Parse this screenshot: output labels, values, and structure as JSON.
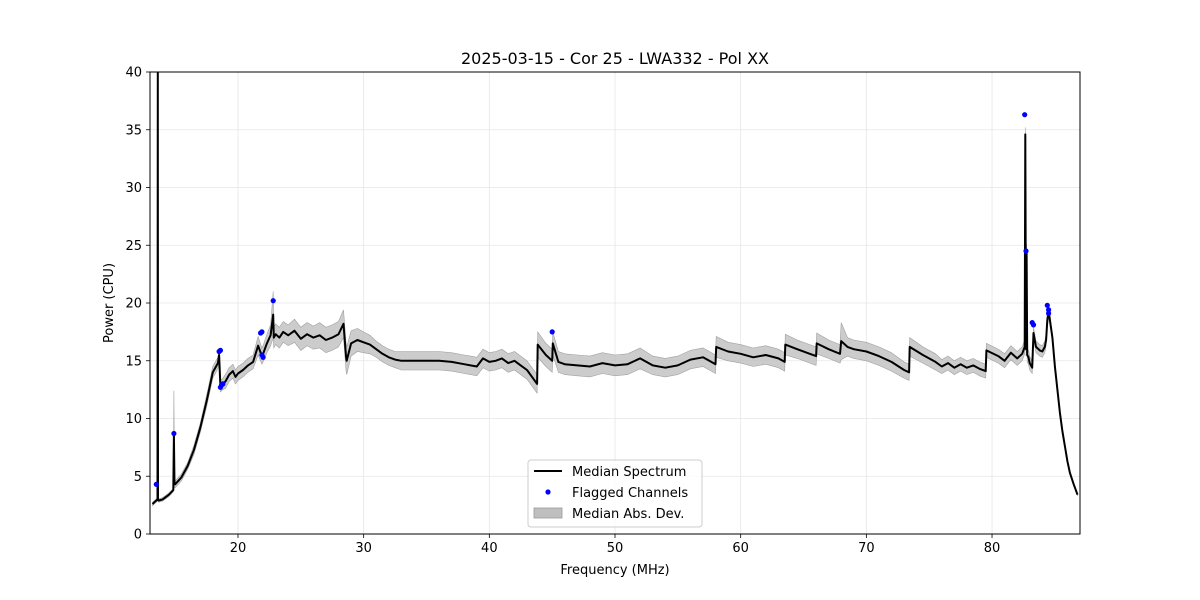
{
  "chart_data": {
    "type": "line",
    "title": "2025-03-15 - Cor 25 - LWA332 - Pol XX",
    "xlabel": "Frequency (MHz)",
    "ylabel": "Power (CPU)",
    "xlim": [
      13.0,
      87.0
    ],
    "ylim": [
      0,
      40
    ],
    "xticks": [
      20,
      30,
      40,
      50,
      60,
      70,
      80
    ],
    "yticks": [
      0,
      5,
      10,
      15,
      20,
      25,
      30,
      35,
      40
    ],
    "grid": true,
    "legend": {
      "location": "lower-center",
      "entries": [
        {
          "label": "Median Spectrum",
          "kind": "line",
          "color": "#000000"
        },
        {
          "label": "Flagged Channels",
          "kind": "marker",
          "color": "#0000ff"
        },
        {
          "label": "Median Abs. Dev.",
          "kind": "patch",
          "color": "#bfbfbf"
        }
      ]
    },
    "series": [
      {
        "name": "Median Spectrum",
        "color": "#000000",
        "x": [
          13.2,
          13.5,
          13.6,
          13.62,
          13.64,
          13.7,
          14.0,
          14.5,
          14.85,
          14.9,
          14.95,
          15.0,
          15.5,
          16.0,
          16.5,
          17.0,
          17.5,
          18.0,
          18.4,
          18.5,
          18.6,
          18.8,
          19.0,
          19.3,
          19.6,
          19.8,
          20.0,
          20.4,
          20.8,
          21.2,
          21.6,
          21.9,
          22.0,
          22.3,
          22.6,
          22.8,
          22.85,
          23.0,
          23.3,
          23.6,
          24.0,
          24.5,
          25.0,
          25.5,
          26.0,
          26.5,
          27.0,
          27.5,
          28.0,
          28.4,
          28.6,
          28.65,
          29.0,
          29.5,
          30.0,
          30.5,
          31.0,
          31.5,
          32.0,
          32.5,
          33.0,
          34.0,
          35.0,
          36.0,
          37.0,
          38.0,
          38.5,
          39.0,
          39.5,
          40.0,
          40.5,
          41.0,
          41.5,
          42.0,
          42.5,
          43.0,
          43.8,
          43.85,
          44.5,
          45.0,
          45.05,
          45.5,
          46.0,
          47.0,
          48.0,
          49.0,
          50.0,
          51.0,
          52.0,
          53.0,
          54.0,
          55.0,
          56.0,
          57.0,
          57.5,
          58.0,
          58.05,
          59.0,
          60.0,
          61.0,
          62.0,
          63.0,
          63.5,
          63.55,
          64.5,
          65.5,
          66.0,
          66.05,
          67.0,
          67.9,
          68.0,
          68.5,
          69.0,
          70.0,
          71.0,
          72.0,
          73.0,
          73.4,
          73.45,
          74.5,
          75.5,
          76.0,
          76.5,
          77.0,
          77.5,
          78.0,
          78.5,
          79.0,
          79.5,
          79.55,
          80.5,
          81.0,
          81.5,
          82.0,
          82.4,
          82.6,
          82.65,
          82.7,
          82.75,
          82.8,
          82.9,
          83.0,
          83.2,
          83.3,
          83.5,
          83.8,
          84.0,
          84.2,
          84.3,
          84.4,
          84.5,
          84.6,
          84.8,
          85.0,
          85.2,
          85.4,
          85.6,
          85.8,
          86.0,
          86.2,
          86.5,
          86.8
        ],
        "y": [
          2.6,
          2.9,
          3.0,
          42.0,
          3.0,
          2.9,
          3.0,
          3.4,
          3.8,
          8.6,
          4.3,
          4.3,
          4.9,
          5.9,
          7.3,
          9.2,
          11.5,
          14.0,
          14.8,
          15.5,
          12.8,
          13.0,
          13.2,
          13.8,
          14.1,
          13.6,
          13.9,
          14.2,
          14.6,
          14.9,
          16.3,
          15.4,
          15.6,
          16.5,
          17.2,
          19.0,
          17.0,
          17.3,
          17.0,
          17.5,
          17.2,
          17.6,
          16.9,
          17.3,
          17.0,
          17.2,
          16.8,
          17.0,
          17.3,
          18.2,
          15.3,
          15.0,
          16.5,
          16.8,
          16.6,
          16.4,
          16.0,
          15.6,
          15.3,
          15.1,
          15.0,
          15.0,
          15.0,
          15.0,
          14.9,
          14.7,
          14.6,
          14.5,
          15.2,
          14.9,
          15.0,
          15.2,
          14.8,
          15.0,
          14.6,
          14.2,
          13.0,
          16.4,
          15.5,
          15.0,
          16.5,
          14.9,
          14.7,
          14.6,
          14.5,
          14.8,
          14.6,
          14.7,
          15.2,
          14.6,
          14.4,
          14.6,
          15.1,
          15.3,
          15.0,
          14.7,
          16.2,
          15.8,
          15.6,
          15.3,
          15.5,
          15.2,
          14.9,
          16.4,
          16.0,
          15.6,
          15.4,
          16.5,
          16.0,
          15.6,
          16.7,
          16.2,
          16.0,
          15.8,
          15.4,
          14.9,
          14.2,
          14.0,
          16.2,
          15.5,
          14.9,
          14.5,
          14.8,
          14.4,
          14.7,
          14.4,
          14.6,
          14.3,
          14.1,
          15.9,
          15.4,
          15.0,
          15.7,
          15.2,
          15.6,
          16.2,
          34.6,
          16.0,
          24.5,
          15.5,
          15.3,
          14.8,
          14.4,
          17.4,
          16.2,
          15.9,
          15.8,
          16.2,
          16.8,
          18.5,
          19.3,
          18.6,
          17.0,
          14.5,
          12.5,
          10.5,
          8.9,
          7.6,
          6.3,
          5.3,
          4.3,
          3.4
        ]
      },
      {
        "name": "Median Abs. Dev.",
        "color": "#bfbfbf",
        "band_halfwidth": [
          0.15,
          0.15,
          0.15,
          0.5,
          0.15,
          0.15,
          0.15,
          0.15,
          0.15,
          3.8,
          0.3,
          0.3,
          0.3,
          0.3,
          0.4,
          0.4,
          0.5,
          0.5,
          0.5,
          0.6,
          0.5,
          0.5,
          0.6,
          0.6,
          0.6,
          0.6,
          0.6,
          0.6,
          0.6,
          0.6,
          0.8,
          0.7,
          0.7,
          0.8,
          0.9,
          2.0,
          0.9,
          0.9,
          0.9,
          0.9,
          0.9,
          1.0,
          1.0,
          1.0,
          1.0,
          1.1,
          1.1,
          1.1,
          1.1,
          1.2,
          1.2,
          1.2,
          1.1,
          1.0,
          0.9,
          0.8,
          0.7,
          0.7,
          0.7,
          0.7,
          0.8,
          0.8,
          0.8,
          0.8,
          0.8,
          0.8,
          0.8,
          0.8,
          0.8,
          0.8,
          0.8,
          0.8,
          0.8,
          0.8,
          0.8,
          0.8,
          0.8,
          1.1,
          1.0,
          1.0,
          1.0,
          0.9,
          0.9,
          0.9,
          0.9,
          0.9,
          0.9,
          0.9,
          0.9,
          0.8,
          0.8,
          0.8,
          0.8,
          0.8,
          0.8,
          0.8,
          0.9,
          0.8,
          0.8,
          0.8,
          0.8,
          0.8,
          0.8,
          0.9,
          0.8,
          0.8,
          0.8,
          0.9,
          0.8,
          0.8,
          1.6,
          0.8,
          0.8,
          0.8,
          0.8,
          0.8,
          0.7,
          0.7,
          0.8,
          0.7,
          0.7,
          0.6,
          0.6,
          0.6,
          0.6,
          0.6,
          0.6,
          0.6,
          0.6,
          0.6,
          0.6,
          0.6,
          0.6,
          0.6,
          0.6,
          0.6,
          0.6,
          0.6,
          0.6,
          0.6,
          0.6,
          0.6,
          0.5,
          0.5,
          0.5,
          0.5,
          0.5,
          0.5,
          0.5,
          0.6,
          0.6,
          0.4,
          0.3,
          0.2,
          0.15,
          0.1,
          0.1,
          0.1,
          0.1,
          0.1,
          0.1,
          0.1
        ]
      },
      {
        "name": "Flagged Channels",
        "color": "#0000ff",
        "points": [
          [
            13.5,
            4.3
          ],
          [
            14.9,
            8.7
          ],
          [
            18.5,
            15.8
          ],
          [
            18.6,
            15.9
          ],
          [
            18.6,
            12.7
          ],
          [
            18.7,
            12.9
          ],
          [
            18.8,
            13.0
          ],
          [
            21.8,
            17.4
          ],
          [
            21.9,
            17.5
          ],
          [
            21.9,
            15.5
          ],
          [
            22.0,
            15.3
          ],
          [
            22.8,
            20.2
          ],
          [
            45.0,
            17.5
          ],
          [
            82.6,
            36.3
          ],
          [
            82.7,
            24.5
          ],
          [
            83.2,
            18.3
          ],
          [
            83.3,
            18.1
          ],
          [
            84.4,
            19.8
          ],
          [
            84.5,
            19.4
          ],
          [
            84.5,
            19.1
          ]
        ]
      }
    ]
  }
}
